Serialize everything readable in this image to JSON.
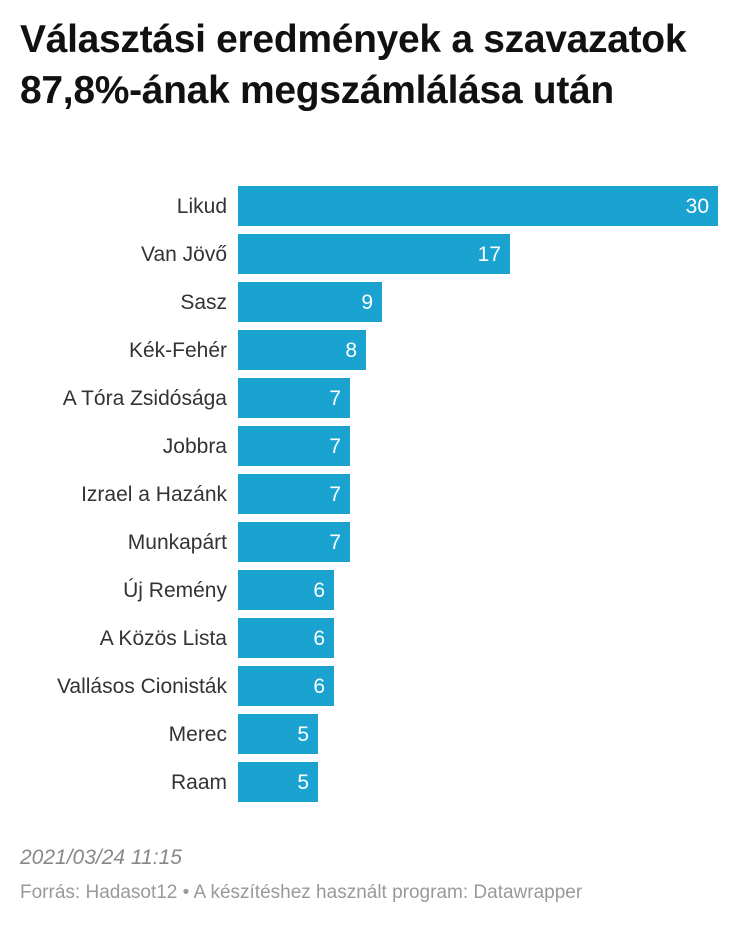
{
  "title": "Választási eredmények a szavazatok 87,8%-ának megszámlálása után",
  "timestamp": "2021/03/24 11:15",
  "footer": {
    "source_label": "Forrás:",
    "source_value": "Hadasot12",
    "separator": "•",
    "tool_label": "A készítéshez használt program:",
    "tool_value": "Datawrapper"
  },
  "colors": {
    "bar": "#1aa3d1",
    "value_label": "#ffffff",
    "category_label": "#333333"
  },
  "chart_data": {
    "type": "bar",
    "orientation": "horizontal",
    "categories": [
      "Likud",
      "Van Jövő",
      "Sasz",
      "Kék-Fehér",
      "A Tóra Zsidósága",
      "Jobbra",
      "Izrael a Hazánk",
      "Munkapárt",
      "Új Remény",
      "A Közös Lista",
      "Vallásos Cionisták",
      "Merec",
      "Raam"
    ],
    "values": [
      30,
      17,
      9,
      8,
      7,
      7,
      7,
      7,
      6,
      6,
      6,
      5,
      5
    ],
    "title": "Választási eredmények a szavazatok 87,8%-ának megszámlálása után",
    "xlim": [
      0,
      30
    ],
    "grid": false,
    "legend": "none",
    "data_labels": "inside-end"
  }
}
